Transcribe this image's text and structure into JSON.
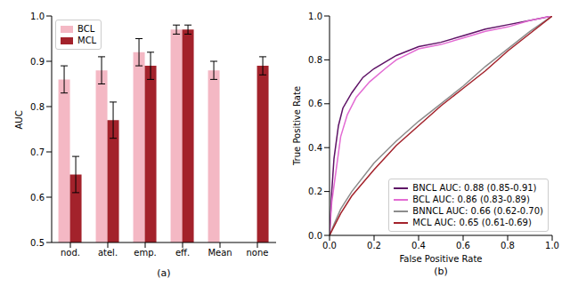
{
  "chart_data": [
    {
      "type": "bar",
      "xlabel": "(a)",
      "ylabel": "AUC",
      "categories": [
        "nod.",
        "atel.",
        "emp.",
        "eff.",
        "Mean",
        "none"
      ],
      "series": [
        {
          "name": "BCL",
          "color": "#f4b8c4",
          "values": [
            0.86,
            0.88,
            0.92,
            0.97,
            0.88,
            null
          ],
          "errors": [
            0.03,
            0.03,
            0.03,
            0.01,
            0.02,
            null
          ]
        },
        {
          "name": "MCL",
          "color": "#a3222b",
          "values": [
            0.65,
            0.77,
            0.89,
            0.97,
            null,
            0.89
          ],
          "errors": [
            0.04,
            0.04,
            0.03,
            0.01,
            null,
            0.02
          ]
        }
      ],
      "ylim": [
        0.5,
        1.0
      ],
      "yticks": [
        0.5,
        0.6,
        0.7,
        0.8,
        0.9,
        {
          "value": 1,
          "label": "1.0"
        }
      ],
      "grid": false,
      "legend": "upper left"
    },
    {
      "type": "line",
      "xlabel": "(b)",
      "x_axis_label": "False Positive Rate",
      "ylabel": "True Positive Rate",
      "series": [
        {
          "name": "BNCL AUC: 0.88 (0.85-0.91)",
          "color": "#5e1266",
          "x": [
            0,
            0.01,
            0.02,
            0.04,
            0.06,
            0.1,
            0.15,
            0.2,
            0.3,
            0.4,
            0.5,
            0.6,
            0.7,
            0.8,
            0.9,
            1
          ],
          "values": [
            0,
            0.2,
            0.35,
            0.5,
            0.58,
            0.65,
            0.72,
            0.76,
            0.82,
            0.86,
            0.88,
            0.91,
            0.94,
            0.96,
            0.98,
            1
          ]
        },
        {
          "name": "BCL AUC: 0.86 (0.83-0.89)",
          "color": "#e36bd3",
          "x": [
            0,
            0.01,
            0.03,
            0.05,
            0.08,
            0.12,
            0.18,
            0.25,
            0.3,
            0.4,
            0.5,
            0.6,
            0.7,
            0.8,
            0.9,
            1
          ],
          "values": [
            0,
            0.15,
            0.3,
            0.45,
            0.55,
            0.63,
            0.7,
            0.76,
            0.8,
            0.85,
            0.87,
            0.9,
            0.93,
            0.95,
            0.98,
            1
          ]
        },
        {
          "name": "BNNCL AUC: 0.66 (0.62-0.70)",
          "color": "#8c8c8c",
          "x": [
            0,
            0.02,
            0.05,
            0.1,
            0.2,
            0.3,
            0.4,
            0.5,
            0.6,
            0.7,
            0.8,
            0.9,
            1
          ],
          "values": [
            0,
            0.05,
            0.12,
            0.2,
            0.33,
            0.43,
            0.52,
            0.6,
            0.68,
            0.77,
            0.85,
            0.93,
            1
          ]
        },
        {
          "name": "MCL AUC: 0.65 (0.61-0.69)",
          "color": "#a3222b",
          "x": [
            0,
            0.02,
            0.05,
            0.1,
            0.2,
            0.3,
            0.4,
            0.5,
            0.6,
            0.7,
            0.8,
            0.9,
            1
          ],
          "values": [
            0,
            0.04,
            0.1,
            0.18,
            0.3,
            0.41,
            0.5,
            0.59,
            0.67,
            0.75,
            0.84,
            0.92,
            1
          ]
        }
      ],
      "xlim": [
        0,
        1
      ],
      "ylim": [
        0,
        1
      ],
      "xticks": [
        {
          "value": 0,
          "label": "0.0"
        },
        0.2,
        0.4,
        0.6,
        0.8,
        {
          "value": 1,
          "label": "1.0"
        }
      ],
      "yticks": [
        {
          "value": 0,
          "label": "0.0"
        },
        0.2,
        0.4,
        0.6,
        0.8,
        {
          "value": 1,
          "label": "1.0"
        }
      ],
      "grid": false,
      "legend": "lower right"
    }
  ]
}
